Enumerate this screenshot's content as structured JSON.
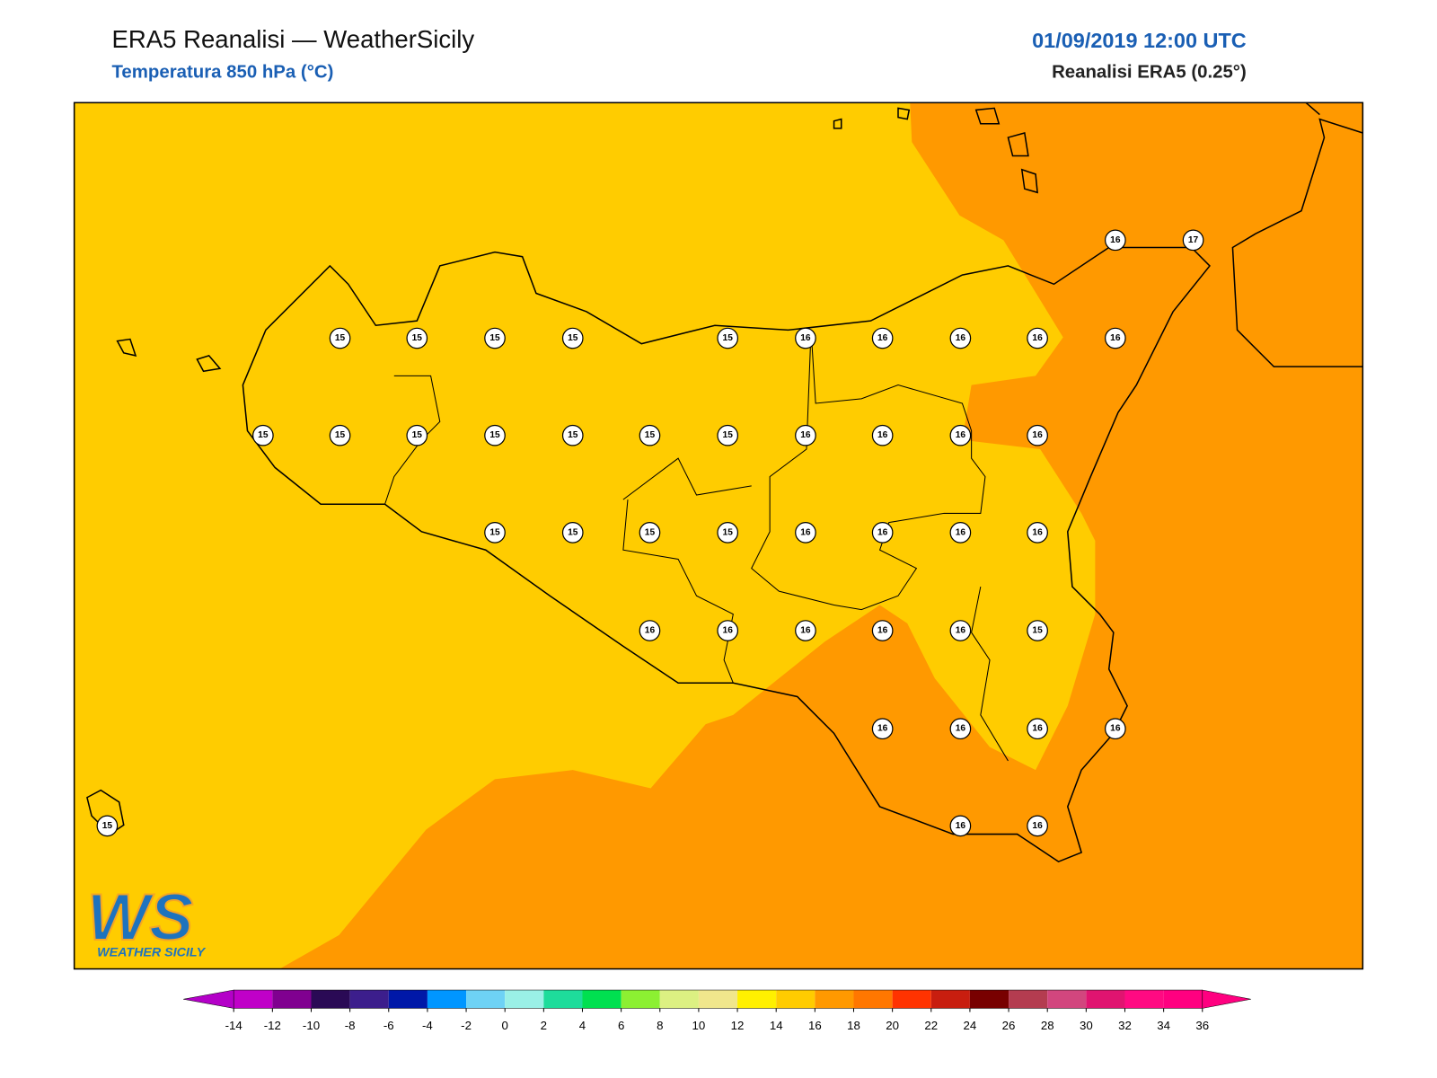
{
  "header": {
    "title": "ERA5 Reanalisi — WeatherSicily",
    "subtitle": "Temperatura 850 hPa (°C)",
    "datetime": "01/09/2019 12:00 UTC",
    "source": "Reanalisi ERA5 (0.25°)"
  },
  "logo": {
    "mark": "WS",
    "text": "WEATHER SICILY"
  },
  "stations": {
    "values": [
      16,
      17,
      15,
      15,
      15,
      15,
      15,
      16,
      16,
      16,
      16,
      16,
      15,
      15,
      15,
      15,
      15,
      15,
      15,
      16,
      16,
      16,
      16,
      15,
      15,
      15,
      15,
      16,
      16,
      16,
      16,
      16,
      16,
      16,
      16,
      16,
      15,
      16,
      16,
      16,
      16,
      15,
      16,
      16
    ]
  },
  "colorbar": {
    "ticks": [
      -14,
      -12,
      -10,
      -8,
      -6,
      -4,
      -2,
      0,
      2,
      4,
      6,
      8,
      10,
      12,
      14,
      16,
      18,
      20,
      22,
      24,
      26,
      28,
      30,
      32,
      34,
      36
    ],
    "colors": [
      "#b400c8",
      "#c000c8",
      "#800090",
      "#2a0a55",
      "#3c1e8c",
      "#0018a8",
      "#0096ff",
      "#6ed2f5",
      "#9af0e6",
      "#1edc9b",
      "#00e050",
      "#8cf032",
      "#dcf082",
      "#f0e68c",
      "#fff000",
      "#ffcc00",
      "#ff9900",
      "#ff7700",
      "#ff3300",
      "#c81e0f",
      "#780000",
      "#b43c50",
      "#d2467e",
      "#e01470",
      "#ff0a82",
      "#ff0080",
      "#ff0080"
    ]
  }
}
